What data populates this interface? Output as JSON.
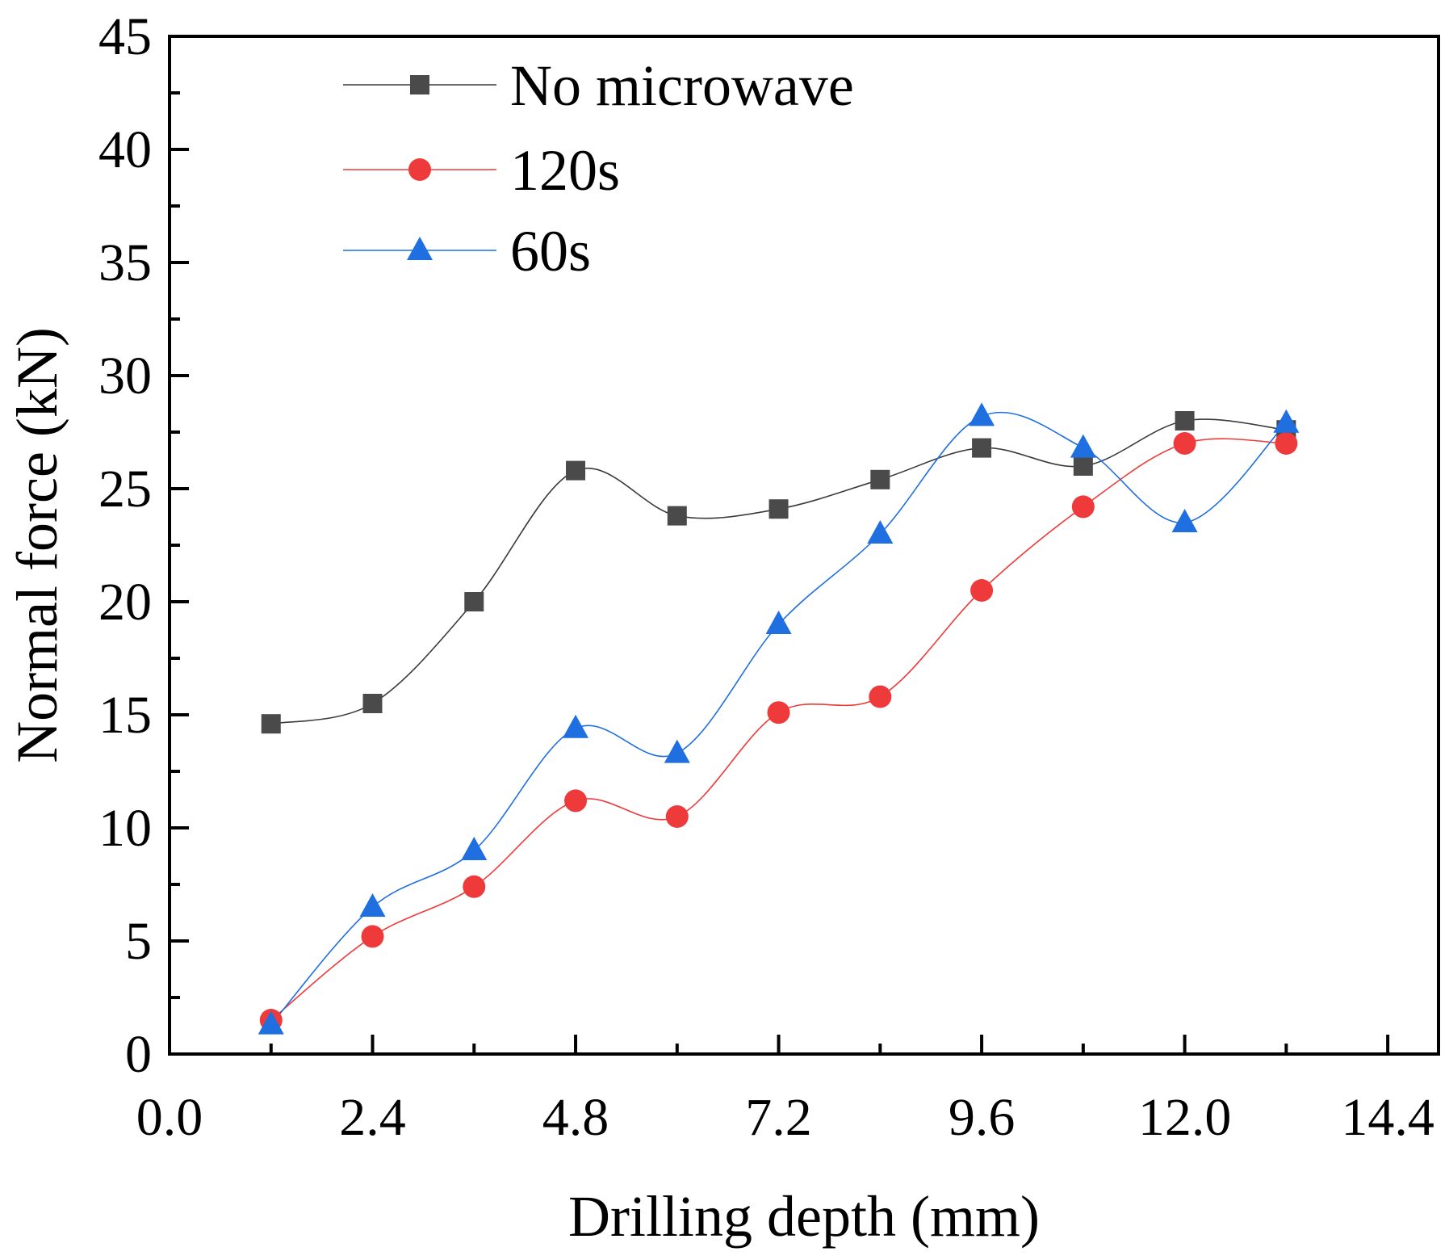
{
  "chart_data": {
    "type": "line",
    "title": "",
    "xlabel": "Drilling depth (mm)",
    "ylabel": "Normal force (kN)",
    "xlim": [
      0.0,
      15.0
    ],
    "ylim": [
      0,
      45
    ],
    "xticks": [
      "0.0",
      "2.4",
      "4.8",
      "7.2",
      "9.6",
      "12.0",
      "14.4"
    ],
    "xtick_values": [
      0.0,
      2.4,
      4.8,
      7.2,
      9.6,
      12.0,
      14.4
    ],
    "yticks": [
      "0",
      "5",
      "10",
      "15",
      "20",
      "25",
      "30",
      "35",
      "40",
      "45"
    ],
    "ytick_values": [
      0,
      5,
      10,
      15,
      20,
      25,
      30,
      35,
      40,
      45
    ],
    "x": [
      1.2,
      2.4,
      3.6,
      4.8,
      6.0,
      7.2,
      8.4,
      9.6,
      10.8,
      12.0,
      13.2
    ],
    "legend_position": "top-left",
    "grid": false,
    "series": [
      {
        "name": "No microwave",
        "marker": "square",
        "color": "#4a4a4a",
        "line_color": "#3a3a3a",
        "values": [
          14.6,
          15.5,
          20.0,
          25.8,
          23.8,
          24.1,
          25.4,
          26.8,
          26.0,
          28.0,
          27.6
        ]
      },
      {
        "name": "120s",
        "marker": "circle",
        "color": "#ee3a3a",
        "line_color": "#ee3a3a",
        "values": [
          1.5,
          5.2,
          7.4,
          11.2,
          10.5,
          15.1,
          15.8,
          20.5,
          24.2,
          27.0,
          27.0
        ]
      },
      {
        "name": "60s",
        "marker": "triangle",
        "color": "#1f6fe0",
        "line_color": "#1f6fe0",
        "values": [
          1.3,
          6.5,
          9.0,
          14.4,
          13.3,
          19.0,
          23.0,
          28.2,
          26.8,
          23.5,
          27.9
        ]
      }
    ]
  }
}
